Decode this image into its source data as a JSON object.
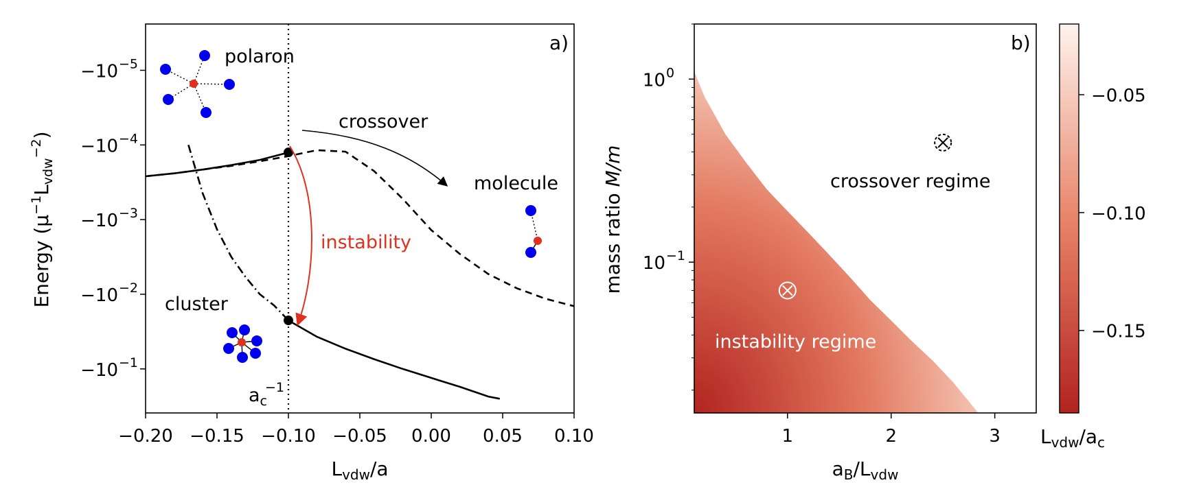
{
  "chart_data": [
    {
      "panel": "a)",
      "type": "line",
      "xlabel": "L_vdw/a",
      "ylabel": "Energy (μ⁻¹L_vdw⁻²)",
      "xlim": [
        -0.2,
        0.1
      ],
      "ylim_log10_neg_energy": [
        -5.62,
        -0.41
      ],
      "y_scale": "symlog",
      "xticks": [
        -0.2,
        -0.15,
        -0.1,
        -0.05,
        0.0,
        0.05,
        0.1
      ],
      "xtick_labels": [
        "−0.20",
        "−0.15",
        "−0.10",
        "−0.05",
        "0.00",
        "0.05",
        "0.10"
      ],
      "yticks": [
        -5,
        -4,
        -3,
        -2,
        -1
      ],
      "ytick_mantissa": "−10",
      "ytick_exponents": [
        "−5",
        "−4",
        "−3",
        "−2",
        "−1"
      ],
      "series": [
        {
          "style": "dashed",
          "x": [
            -0.2,
            -0.18,
            -0.16,
            -0.14,
            -0.12,
            -0.1,
            -0.08,
            -0.06,
            -0.04,
            -0.02,
            0.0,
            0.02,
            0.04,
            0.06,
            0.08,
            0.1
          ],
          "log10_neg_y": [
            -3.58,
            -3.62,
            -3.67,
            -3.72,
            -3.78,
            -3.85,
            -3.93,
            -3.91,
            -3.65,
            -3.28,
            -2.86,
            -2.54,
            -2.27,
            -2.08,
            -1.94,
            -1.84
          ]
        },
        {
          "style": "solid",
          "x": [
            -0.2,
            -0.18,
            -0.16,
            -0.14,
            -0.12,
            -0.1
          ],
          "log10_neg_y": [
            -3.58,
            -3.62,
            -3.67,
            -3.73,
            -3.8,
            -3.9
          ]
        },
        {
          "style": "dashdot",
          "x": [
            -0.17,
            -0.16,
            -0.15,
            -0.14,
            -0.13,
            -0.12,
            -0.11,
            -0.1
          ],
          "log10_neg_y": [
            -4.0,
            -3.35,
            -2.87,
            -2.5,
            -2.23,
            -2.0,
            -1.85,
            -1.65
          ]
        },
        {
          "style": "solid",
          "x": [
            -0.1,
            -0.08,
            -0.06,
            -0.04,
            -0.02,
            0.0,
            0.02,
            0.04,
            0.048
          ],
          "log10_neg_y": [
            -1.65,
            -1.43,
            -1.27,
            -1.13,
            -1.0,
            -0.88,
            -0.76,
            -0.63,
            -0.6
          ]
        }
      ],
      "vline_x": -0.1,
      "points": [
        {
          "x": -0.1,
          "log10_neg_y": -3.9
        },
        {
          "x": -0.1,
          "log10_neg_y": -1.65
        }
      ],
      "annotations": {
        "polaron": "polaron",
        "crossover": "crossover",
        "molecule": "molecule",
        "instability": "instability",
        "cluster": "cluster",
        "ac_label": "a",
        "ac_sub": "c",
        "ac_sup": "−1"
      },
      "colors": {
        "atom": "#0000ee",
        "impurity": "#e0301e",
        "instability": "#e0301e"
      }
    },
    {
      "panel": "b)",
      "type": "heatmap",
      "xlabel": "a_B/L_vdw",
      "ylabel": "mass ratio M/m",
      "xlim": [
        0.1,
        3.4
      ],
      "ylim": [
        0.015,
        2.0
      ],
      "y_scale": "log",
      "xticks": [
        1,
        2,
        3
      ],
      "ytick_labels": [
        "10",
        "10"
      ],
      "ytick_exponents": [
        "0",
        "−1"
      ],
      "boundary": {
        "x": [
          0.1,
          0.2,
          0.4,
          0.6,
          0.8,
          1.0,
          1.2,
          1.4,
          1.6,
          1.8,
          2.0,
          2.2,
          2.4,
          2.6,
          2.8,
          2.84
        ],
        "y": [
          1.1,
          0.8,
          0.5,
          0.35,
          0.25,
          0.19,
          0.145,
          0.11,
          0.083,
          0.062,
          0.048,
          0.037,
          0.029,
          0.022,
          0.016,
          0.015
        ]
      },
      "region_labels": {
        "crossover": "crossover regime",
        "instability": "instability regime"
      },
      "markers": [
        {
          "x": 1.0,
          "y": 0.07,
          "symbol": "⊗"
        },
        {
          "x": 2.5,
          "y": 0.45,
          "symbol": "⊗"
        }
      ],
      "colorbar": {
        "label": "L_vdw/a_c",
        "range": [
          -0.185,
          -0.02
        ],
        "ticks": [
          -0.05,
          -0.1,
          -0.15
        ],
        "tick_labels": [
          "−0.05",
          "−0.10",
          "−0.15"
        ],
        "color_low": "#b2231f",
        "color_mid": "#e8846a",
        "color_high": "#fef3ed"
      }
    }
  ]
}
